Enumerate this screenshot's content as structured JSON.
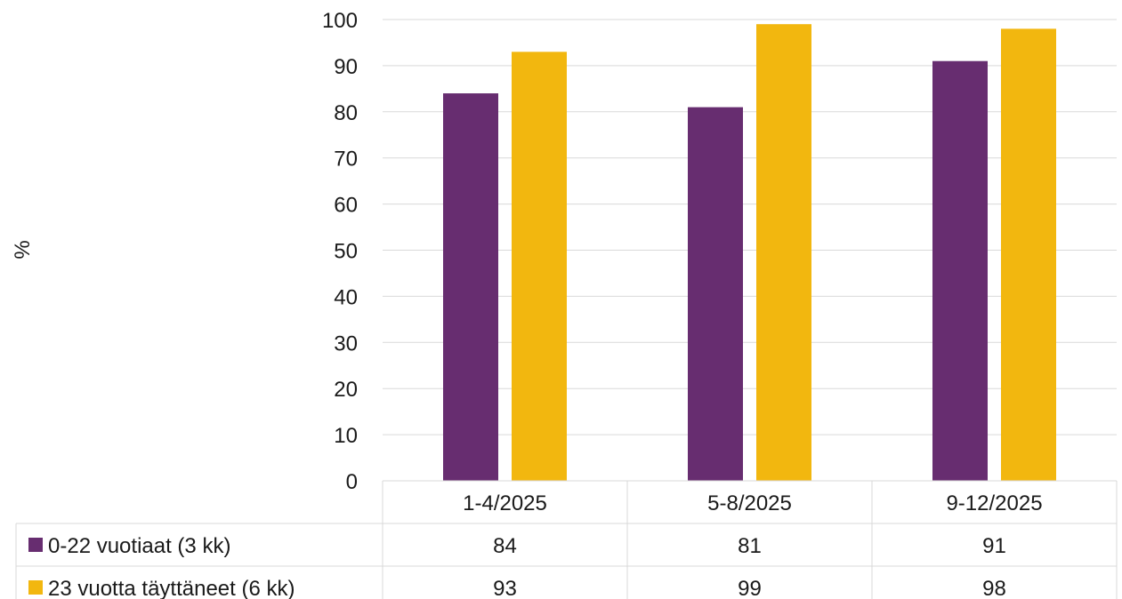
{
  "chart_data": {
    "type": "bar",
    "ylabel": "%",
    "ylim": [
      0,
      100
    ],
    "yticks": [
      0,
      10,
      20,
      30,
      40,
      50,
      60,
      70,
      80,
      90,
      100
    ],
    "grid": true,
    "legend": "data-table",
    "categories": [
      "1-4/2025",
      "5-8/2025",
      "9-12/2025"
    ],
    "series": [
      {
        "name": "0-22 vuotiaat (3 kk)",
        "color": "#672D70",
        "values": [
          84,
          81,
          91
        ]
      },
      {
        "name": "23 vuotta täyttäneet (6 kk)",
        "color": "#F2B70F",
        "values": [
          93,
          99,
          98
        ]
      }
    ]
  }
}
